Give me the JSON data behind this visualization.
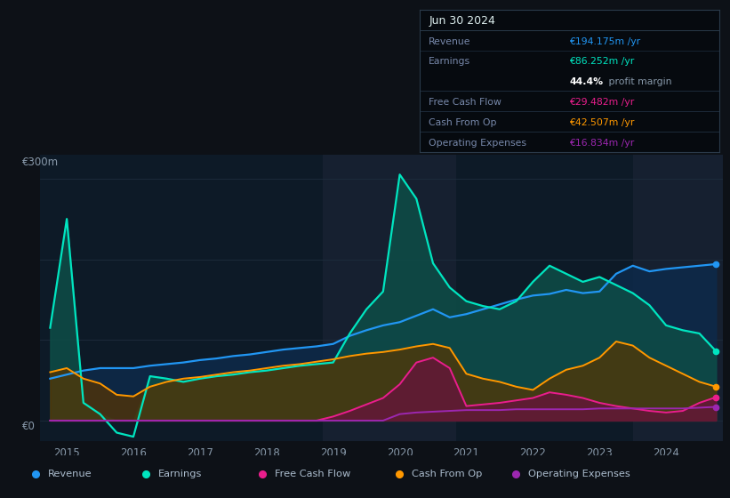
{
  "background_color": "#0d1117",
  "plot_bg": "#0d1a27",
  "grid_color": "#1e2d3d",
  "text_color": "#8899aa",
  "title_text_color": "#ccddee",
  "ylabel_top": "€300m",
  "ylabel_bottom": "€0",
  "xmin": 2014.6,
  "xmax": 2024.85,
  "ymin": -25,
  "ymax": 330,
  "revenue_color": "#2196f3",
  "earnings_color": "#00e5c0",
  "fcf_color": "#e91e8c",
  "cashfromop_color": "#ff9800",
  "opex_color": "#9c27b0",
  "earnings_fill_color": "#0d4d47",
  "revenue_fill_color": "#0d2a4a",
  "fcf_fill_color": "#6b1040",
  "cashfromop_fill_color": "#5a3500",
  "shaded_region1": [
    2018.85,
    2020.85
  ],
  "shaded_region2": [
    2023.5,
    2024.85
  ],
  "shade_color": "#162030",
  "x": [
    2014.75,
    2015.0,
    2015.25,
    2015.5,
    2015.75,
    2016.0,
    2016.25,
    2016.5,
    2016.75,
    2017.0,
    2017.25,
    2017.5,
    2017.75,
    2018.0,
    2018.25,
    2018.5,
    2018.75,
    2019.0,
    2019.25,
    2019.5,
    2019.75,
    2020.0,
    2020.25,
    2020.5,
    2020.75,
    2021.0,
    2021.25,
    2021.5,
    2021.75,
    2022.0,
    2022.25,
    2022.5,
    2022.75,
    2023.0,
    2023.25,
    2023.5,
    2023.75,
    2024.0,
    2024.25,
    2024.5,
    2024.75
  ],
  "revenue": [
    52,
    57,
    62,
    65,
    65,
    65,
    68,
    70,
    72,
    75,
    77,
    80,
    82,
    85,
    88,
    90,
    92,
    95,
    105,
    112,
    118,
    122,
    130,
    138,
    128,
    132,
    138,
    144,
    150,
    155,
    157,
    162,
    158,
    160,
    182,
    192,
    185,
    188,
    190,
    192,
    194
  ],
  "earnings": [
    115,
    250,
    22,
    8,
    -15,
    -20,
    55,
    52,
    48,
    52,
    55,
    57,
    60,
    62,
    65,
    68,
    70,
    72,
    108,
    138,
    160,
    305,
    275,
    195,
    165,
    148,
    142,
    138,
    148,
    172,
    192,
    182,
    172,
    178,
    168,
    158,
    143,
    118,
    112,
    108,
    86
  ],
  "fcf": [
    0,
    0,
    0,
    0,
    0,
    0,
    0,
    0,
    0,
    0,
    0,
    0,
    0,
    0,
    0,
    0,
    0,
    5,
    12,
    20,
    28,
    45,
    72,
    78,
    65,
    18,
    20,
    22,
    25,
    28,
    35,
    32,
    28,
    22,
    18,
    15,
    12,
    10,
    12,
    22,
    29
  ],
  "cashfromop": [
    60,
    65,
    52,
    46,
    32,
    30,
    42,
    48,
    52,
    54,
    57,
    60,
    62,
    65,
    68,
    70,
    73,
    76,
    80,
    83,
    85,
    88,
    92,
    95,
    90,
    58,
    52,
    48,
    42,
    38,
    52,
    63,
    68,
    78,
    98,
    93,
    78,
    68,
    58,
    48,
    42
  ],
  "opex": [
    0,
    0,
    0,
    0,
    0,
    0,
    0,
    0,
    0,
    0,
    0,
    0,
    0,
    0,
    0,
    0,
    0,
    0,
    0,
    0,
    0,
    8,
    10,
    11,
    12,
    13,
    13,
    13,
    14,
    14,
    14,
    14,
    14,
    15,
    15,
    15,
    15,
    15,
    15,
    16,
    17
  ],
  "info_box": {
    "title": "Jun 30 2024",
    "rows": [
      {
        "label": "Revenue",
        "value": "€194.175m /yr",
        "value_color": "#2196f3"
      },
      {
        "label": "Earnings",
        "value": "€86.252m /yr",
        "value_color": "#00e5c0"
      },
      {
        "label": "",
        "value": "44.4% profit margin",
        "value_color": "#ffffff",
        "bold_part": "44.4%"
      },
      {
        "label": "Free Cash Flow",
        "value": "€29.482m /yr",
        "value_color": "#e91e8c"
      },
      {
        "label": "Cash From Op",
        "value": "€42.507m /yr",
        "value_color": "#ff9800"
      },
      {
        "label": "Operating Expenses",
        "value": "€16.834m /yr",
        "value_color": "#9c27b0"
      }
    ]
  },
  "legend": [
    {
      "label": "Revenue",
      "color": "#2196f3"
    },
    {
      "label": "Earnings",
      "color": "#00e5c0"
    },
    {
      "label": "Free Cash Flow",
      "color": "#e91e8c"
    },
    {
      "label": "Cash From Op",
      "color": "#ff9800"
    },
    {
      "label": "Operating Expenses",
      "color": "#9c27b0"
    }
  ]
}
